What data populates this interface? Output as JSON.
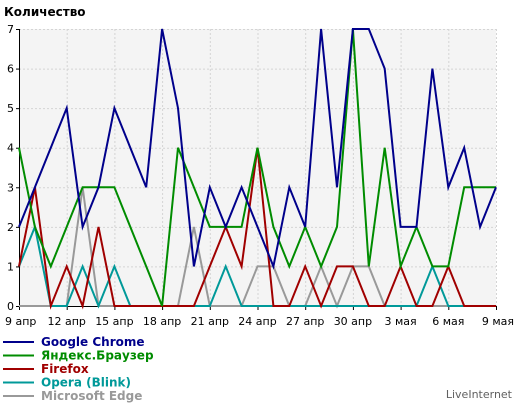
{
  "chart_data": {
    "type": "line",
    "ylabel": "Количество",
    "ylim": [
      0,
      7
    ],
    "yticks": [
      0,
      1,
      2,
      3,
      4,
      5,
      6,
      7
    ],
    "grid": true,
    "legend_position": "bottom-left",
    "x": [
      "9 апр",
      "10 апр",
      "11 апр",
      "12 апр",
      "13 апр",
      "14 апр",
      "15 апр",
      "16 апр",
      "17 апр",
      "18 апр",
      "19 апр",
      "20 апр",
      "21 апр",
      "22 апр",
      "23 апр",
      "24 апр",
      "25 апр",
      "26 апр",
      "27 апр",
      "28 апр",
      "29 апр",
      "30 апр",
      "1 мая",
      "2 мая",
      "3 мая",
      "4 мая",
      "5 мая",
      "6 мая",
      "7 мая",
      "8 мая",
      "9 мая"
    ],
    "xtick_labels": [
      {
        "index": 0,
        "label": "9 апр"
      },
      {
        "index": 3,
        "label": "12 апр"
      },
      {
        "index": 6,
        "label": "15 апр"
      },
      {
        "index": 9,
        "label": "18 апр"
      },
      {
        "index": 12,
        "label": "21 апр"
      },
      {
        "index": 15,
        "label": "24 апр"
      },
      {
        "index": 18,
        "label": "27 апр"
      },
      {
        "index": 21,
        "label": "30 апр"
      },
      {
        "index": 24,
        "label": "3 мая"
      },
      {
        "index": 27,
        "label": "6 мая"
      },
      {
        "index": 30,
        "label": "9 мая"
      }
    ],
    "series": [
      {
        "name": "Google Chrome",
        "color": "#00008b",
        "values": [
          2,
          3,
          4,
          5,
          2,
          3,
          5,
          4,
          3,
          7,
          5,
          1,
          3,
          2,
          3,
          2,
          1,
          3,
          2,
          7,
          3,
          7,
          7,
          6,
          2,
          2,
          6,
          3,
          4,
          2,
          3
        ]
      },
      {
        "name": "Яндекс.Браузер",
        "color": "#008c00",
        "values": [
          4,
          2,
          1,
          2,
          3,
          3,
          3,
          2,
          1,
          0,
          4,
          3,
          2,
          2,
          2,
          4,
          2,
          1,
          2,
          1,
          2,
          7,
          1,
          4,
          1,
          2,
          1,
          1,
          3,
          3,
          3
        ]
      },
      {
        "name": "Firefox",
        "color": "#a00000",
        "values": [
          1,
          3,
          0,
          1,
          0,
          2,
          0,
          0,
          0,
          0,
          0,
          0,
          1,
          2,
          1,
          4,
          0,
          0,
          1,
          0,
          1,
          1,
          0,
          0,
          1,
          0,
          0,
          1,
          0,
          0,
          0
        ]
      },
      {
        "name": "Opera (Blink)",
        "color": "#009999",
        "values": [
          1,
          2,
          0,
          0,
          1,
          0,
          1,
          0,
          0,
          0,
          0,
          0,
          0,
          1,
          0,
          0,
          0,
          0,
          0,
          0,
          0,
          0,
          0,
          0,
          0,
          0,
          1,
          0,
          0,
          0,
          0
        ]
      },
      {
        "name": "Microsoft Edge",
        "color": "#999999",
        "values": [
          0,
          0,
          0,
          0,
          3,
          0,
          0,
          0,
          0,
          0,
          0,
          2,
          0,
          0,
          0,
          1,
          1,
          0,
          0,
          1,
          0,
          1,
          1,
          0,
          0,
          0,
          0,
          0,
          0,
          0,
          0
        ]
      }
    ]
  },
  "brand": "LiveInternet"
}
